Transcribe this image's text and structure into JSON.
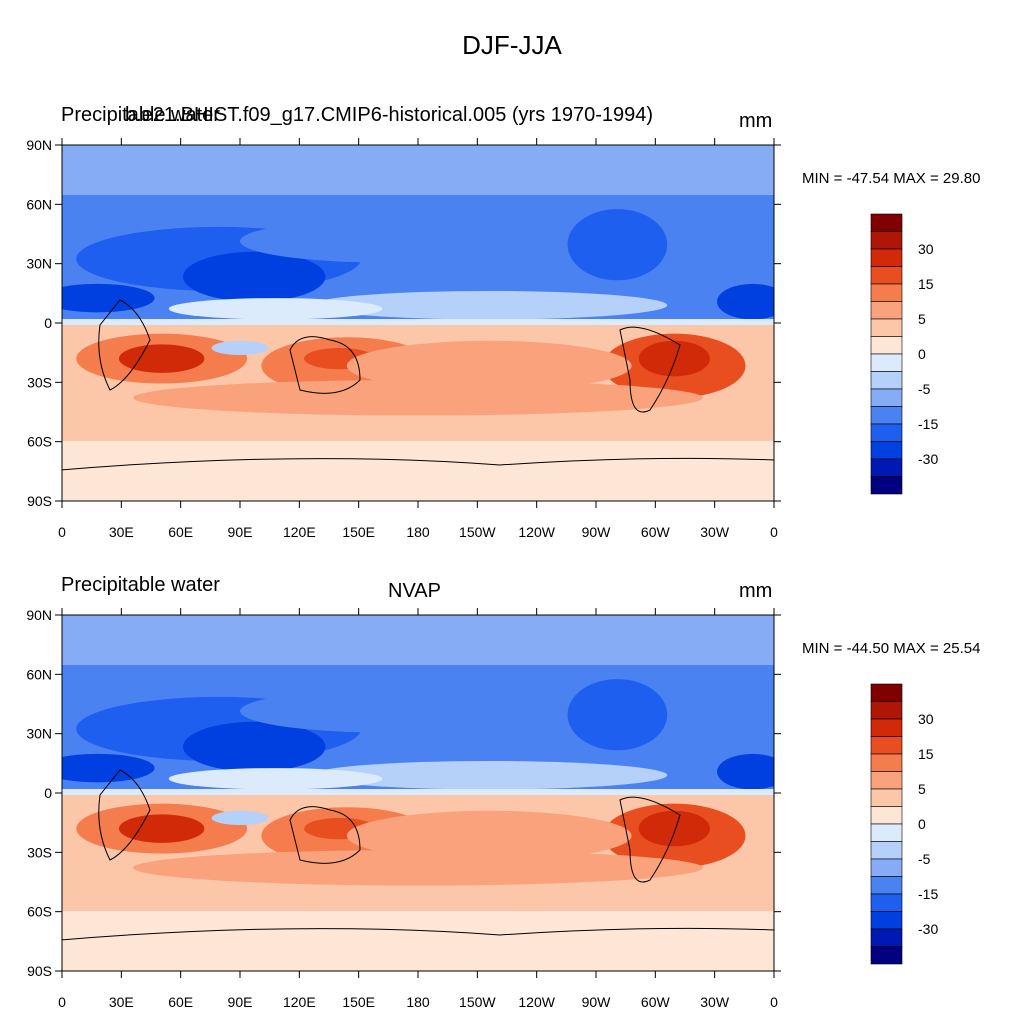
{
  "title": "DJF-JJA",
  "colors": [
    "#000080",
    "#0019b2",
    "#0040e0",
    "#1f5fef",
    "#4a82f2",
    "#86acf5",
    "#b5d0f9",
    "#dcebfc",
    "#fde6d5",
    "#fcc7a8",
    "#f9a27b",
    "#f57c4d",
    "#e84e1f",
    "#d12a09",
    "#ae1605",
    "#800000"
  ],
  "colorbar_labels": [
    "30",
    "15",
    "5",
    "0",
    "-5",
    "-15",
    "-30"
  ],
  "lat_labels": [
    "90N",
    "60N",
    "30N",
    "0",
    "30S",
    "60S",
    "90S"
  ],
  "lon_labels": [
    "0",
    "30E",
    "60E",
    "90E",
    "120E",
    "150E",
    "180",
    "150W",
    "120W",
    "90W",
    "60W",
    "30W",
    "0"
  ],
  "panels": [
    {
      "left_title": "Precipitable water",
      "center_title": "b.e21.BHIST.f09_g17.CMIP6-historical.005 (yrs 1970-1994)",
      "units": "mm",
      "stats": "MIN = -47.54 MAX =  29.80"
    },
    {
      "left_title": "Precipitable water",
      "center_title": "NVAP",
      "units": "mm",
      "stats": "MIN = -44.50 MAX =  25.54"
    }
  ]
}
